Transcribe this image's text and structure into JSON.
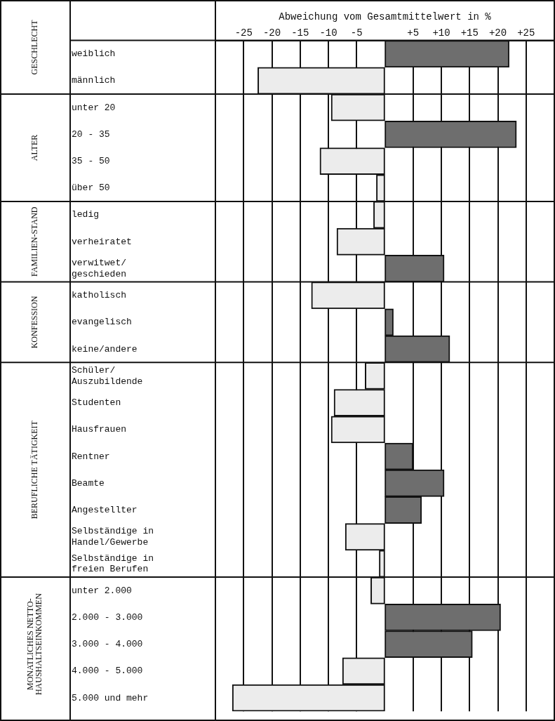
{
  "chart_data": {
    "type": "bar",
    "orientation": "horizontal",
    "xlabel": "Abweichung vom Gesamtmittelwert in %",
    "categories": [
      "weiblich",
      "männlich",
      "unter 20",
      "20 - 35",
      "35 - 50",
      "über 50",
      "ledig",
      "verheiratet",
      "verwitwet/ geschieden",
      "katholisch",
      "evangelisch",
      "keine/andere",
      "Schüler/ Auszubildende",
      "Studenten",
      "Hausfrauen",
      "Rentner",
      "Beamte",
      "Angestellter",
      "Selbständige in Handel/Gewerbe",
      "Selbständige in freien Berufen",
      "unter 2.000",
      "2.000 - 3.000",
      "3.000 - 4.000",
      "4.000 - 5.000",
      "5.000 und mehr"
    ],
    "values": [
      22,
      -22.5,
      -9.5,
      23.3,
      -11.5,
      -1.5,
      -2,
      -8.5,
      10.5,
      -13,
      1.5,
      11.5,
      -3.5,
      -9,
      -9.5,
      5,
      10.5,
      6.5,
      -7,
      -1,
      -2.5,
      20.5,
      15.5,
      -7.5,
      -27
    ],
    "colors": [
      "#6e6e6e",
      "#ececec",
      "#ececec",
      "#6e6e6e",
      "#ececec",
      "#ececec",
      "#ececec",
      "#ececec",
      "#6e6e6e",
      "#ececec",
      "#6e6e6e",
      "#6e6e6e",
      "#ececec",
      "#ececec",
      "#ececec",
      "#6e6e6e",
      "#6e6e6e",
      "#6e6e6e",
      "#ececec",
      "#ececec",
      "#ececec",
      "#6e6e6e",
      "#6e6e6e",
      "#ececec",
      "#ececec"
    ],
    "xlim": [
      -30,
      30
    ],
    "xticks": [
      -25,
      -20,
      -15,
      -10,
      -5,
      {
        "value": 5,
        "label": "+5"
      },
      {
        "value": 10,
        "label": "+10"
      },
      {
        "value": 15,
        "label": "+15"
      },
      {
        "value": 20,
        "label": "+20"
      },
      {
        "value": 25,
        "label": "+25"
      }
    ],
    "grid": "x",
    "legend": false,
    "annotations": [
      "GESCHLECHT",
      "ALTER",
      "FAMILIEN-STAND",
      "KONFESSION",
      "BERUFLICHE TÄTIGKEIT",
      "MONATLICHES NETTO-HAUSHALTSEINKOMMEN"
    ]
  }
}
